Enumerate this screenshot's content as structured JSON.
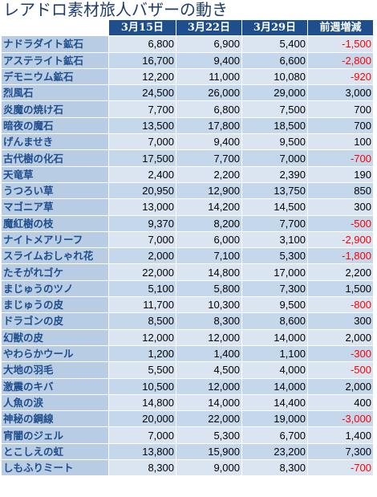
{
  "title": "レアドロ素材旅人バザーの動き",
  "columns": [
    "3月15日",
    "3月22日",
    "3月29日",
    "前週増減"
  ],
  "rows": [
    {
      "name": "ナドラダイト鉱石",
      "values": [
        "6,800",
        "6,900",
        "5,400",
        "-1,500"
      ],
      "neg": true
    },
    {
      "name": "アステライト鉱石",
      "values": [
        "16,700",
        "9,400",
        "6,600",
        "-2,800"
      ],
      "neg": true
    },
    {
      "name": "デモニウム鉱石",
      "values": [
        "12,200",
        "11,000",
        "10,080",
        "-920"
      ],
      "neg": true
    },
    {
      "name": "烈風石",
      "values": [
        "24,500",
        "26,000",
        "29,000",
        "3,000"
      ],
      "neg": false
    },
    {
      "name": "炎魔の焼け石",
      "values": [
        "7,700",
        "6,800",
        "7,500",
        "700"
      ],
      "neg": false
    },
    {
      "name": "暗夜の魔石",
      "values": [
        "13,500",
        "17,800",
        "18,500",
        "700"
      ],
      "neg": false
    },
    {
      "name": "げんませき",
      "values": [
        "7,000",
        "9,400",
        "9,500",
        "100"
      ],
      "neg": false
    },
    {
      "name": "古代樹の化石",
      "values": [
        "17,500",
        "7,700",
        "7,000",
        "-700"
      ],
      "neg": true
    },
    {
      "name": "天竜草",
      "values": [
        "2,400",
        "2,200",
        "2,390",
        "190"
      ],
      "neg": false
    },
    {
      "name": "うつろい草",
      "values": [
        "20,950",
        "12,900",
        "13,750",
        "850"
      ],
      "neg": false
    },
    {
      "name": "マゴニア草",
      "values": [
        "13,000",
        "14,200",
        "14,500",
        "300"
      ],
      "neg": false
    },
    {
      "name": "魔紅樹の枝",
      "values": [
        "9,370",
        "8,200",
        "7,700",
        "-500"
      ],
      "neg": true
    },
    {
      "name": "ナイトメアリーフ",
      "values": [
        "7,000",
        "6,000",
        "3,100",
        "-2,900"
      ],
      "neg": true
    },
    {
      "name": "スライムおしゃれ花",
      "values": [
        "2,000",
        "7,100",
        "5,300",
        "-1,800"
      ],
      "neg": true
    },
    {
      "name": "たそがれゴケ",
      "values": [
        "22,000",
        "14,800",
        "17,000",
        "2,200"
      ],
      "neg": false
    },
    {
      "name": "まじゅうのツノ",
      "values": [
        "5,100",
        "5,800",
        "7,300",
        "1,500"
      ],
      "neg": false
    },
    {
      "name": "まじゅうの皮",
      "values": [
        "11,700",
        "10,300",
        "9,500",
        "-800"
      ],
      "neg": true
    },
    {
      "name": "ドラゴンの皮",
      "values": [
        "8,500",
        "8,300",
        "8,600",
        "300"
      ],
      "neg": false
    },
    {
      "name": "幻獣の皮",
      "values": [
        "12,000",
        "12,000",
        "14,000",
        "2,000"
      ],
      "neg": false
    },
    {
      "name": "やわらかウール",
      "values": [
        "1,200",
        "1,400",
        "1,100",
        "-300"
      ],
      "neg": true
    },
    {
      "name": "大地の羽毛",
      "values": [
        "5,500",
        "4,500",
        "4,000",
        "-500"
      ],
      "neg": true
    },
    {
      "name": "激震のキバ",
      "values": [
        "10,500",
        "12,000",
        "14,000",
        "2,000"
      ],
      "neg": false
    },
    {
      "name": "人魚の涙",
      "values": [
        "14,800",
        "14,000",
        "14,400",
        "400"
      ],
      "neg": false
    },
    {
      "name": "神秘の鋼線",
      "values": [
        "20,000",
        "22,000",
        "19,000",
        "-3,000"
      ],
      "neg": true
    },
    {
      "name": "宵闇のジェル",
      "values": [
        "7,000",
        "5,300",
        "6,700",
        "1,400"
      ],
      "neg": false
    },
    {
      "name": "とこしえの虹",
      "values": [
        "13,800",
        "15,900",
        "23,200",
        "7,300"
      ],
      "neg": false
    },
    {
      "name": "しもふりミート",
      "values": [
        "8,300",
        "9,000",
        "8,300",
        "-700"
      ],
      "neg": true
    }
  ]
}
